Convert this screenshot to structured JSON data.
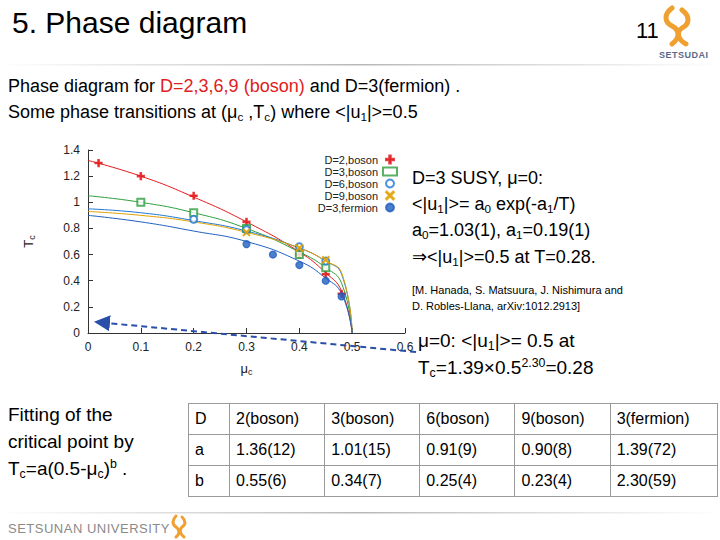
{
  "header": {
    "title": "5. Phase diagram",
    "page_number": "11",
    "logo_text": "SETSUDAI"
  },
  "intro": [
    [
      "Phase diagram for ",
      {
        "text": "D=2,3,6,9 (boson)",
        "color": "#e0201b"
      },
      " and D=3(fermion) ."
    ],
    [
      "Some phase transitions at (μ",
      {
        "sub": "c"
      },
      " ,T",
      {
        "sub": "c"
      },
      ") where <|u",
      {
        "sub": "1"
      },
      "|>=0.5"
    ]
  ],
  "notes": [
    [
      "D=3 SUSY, μ=0:"
    ],
    [
      "<|u",
      {
        "sub": "1"
      },
      "|>= a",
      {
        "sub": "0"
      },
      " exp(-a",
      {
        "sub": "1"
      },
      "/T)"
    ],
    [
      "a",
      {
        "sub": "0"
      },
      "=1.03(1), a",
      {
        "sub": "1"
      },
      "=0.19(1)"
    ],
    [
      "⇒<|u",
      {
        "sub": "1"
      },
      "|>=0.5 at T=0.28."
    ]
  ],
  "citation": [
    "[M. Hanada, S. Matsuura, J. Nishimura and",
    "D. Robles-Llana, arXiv:1012.2913]"
  ],
  "annotation": [
    [
      "μ=0: <|u",
      {
        "sub": "1"
      },
      "|>= 0.5 at"
    ],
    [
      "T",
      {
        "sub": "c"
      },
      "=1.39×0.5",
      {
        "sup": "2.30"
      },
      "=0.28"
    ]
  ],
  "fit_text": [
    [
      "Fitting of the"
    ],
    [
      "critical point  by"
    ],
    [
      "T",
      {
        "sub": "c"
      },
      "=a(0.5-μ",
      {
        "sub": "c"
      },
      ")",
      {
        "sup": "b"
      },
      " ."
    ]
  ],
  "table": {
    "rows": [
      [
        "D",
        "2(boson)",
        "3(boson)",
        "6(boson)",
        "9(boson)",
        "3(fermion)"
      ],
      [
        "a",
        "1.36(12)",
        "1.01(15)",
        "0.91(9)",
        "0.90(8)",
        "1.39(72)"
      ],
      [
        "b",
        "0.55(6)",
        "0.34(7)",
        "0.25(4)",
        "0.23(4)",
        "2.30(59)"
      ]
    ]
  },
  "footer": {
    "text": "SETSUNAN UNIVERSITY"
  },
  "chart_data": {
    "type": "scatter",
    "xlabel": [
      "μ",
      {
        "sub": "c"
      }
    ],
    "ylabel": [
      "T",
      {
        "sub": "c"
      }
    ],
    "xlim": [
      0,
      0.6
    ],
    "ylim": [
      0,
      1.4
    ],
    "xticks": [
      0,
      0.1,
      0.2,
      0.3,
      0.4,
      0.5,
      0.6
    ],
    "yticks": [
      0,
      0.2,
      0.4,
      0.6,
      0.8,
      1,
      1.2,
      1.4
    ],
    "grid": false,
    "legend": "upper right",
    "fit_x": [
      0,
      0.1,
      0.2,
      0.3,
      0.4,
      0.45,
      0.48,
      0.5
    ],
    "series": [
      {
        "name": "D=2,boson",
        "color": "#e41a1c",
        "marker": "plus",
        "line_style": "solid",
        "x": [
          0.02,
          0.1,
          0.2,
          0.3,
          0.4,
          0.45,
          0.48
        ],
        "values": [
          1.3,
          1.2,
          1.05,
          0.85,
          0.6,
          0.45,
          0.3
        ],
        "fit_values": [
          1.32,
          1.2,
          1.04,
          0.85,
          0.62,
          0.46,
          0.32,
          0
        ]
      },
      {
        "name": "D=3,boson",
        "color": "#2e9e3e",
        "marker": "square_open",
        "line_style": "solid",
        "x": [
          0.1,
          0.2,
          0.3,
          0.4,
          0.45
        ],
        "values": [
          1.0,
          0.92,
          0.8,
          0.6,
          0.5
        ],
        "fit_values": [
          1.05,
          1.0,
          0.92,
          0.8,
          0.62,
          0.5,
          0.38,
          0
        ]
      },
      {
        "name": "D=6,boson",
        "color": "#1f77d4",
        "marker": "circle_open",
        "line_style": "solid",
        "x": [
          0.2,
          0.3,
          0.4,
          0.45
        ],
        "values": [
          0.87,
          0.79,
          0.66,
          0.55
        ],
        "fit_values": [
          0.95,
          0.92,
          0.86,
          0.78,
          0.65,
          0.55,
          0.45,
          0
        ]
      },
      {
        "name": "D=9,boson",
        "color": "#e0a000",
        "marker": "x",
        "line_style": "solid",
        "x": [
          0.3,
          0.4,
          0.45
        ],
        "values": [
          0.77,
          0.65,
          0.56
        ],
        "fit_values": [
          0.93,
          0.9,
          0.85,
          0.77,
          0.65,
          0.55,
          0.46,
          0
        ]
      },
      {
        "name": "D=3,fermion",
        "color": "#1f5fbf",
        "marker": "circle",
        "line_style": "solid",
        "x": [
          0.3,
          0.35,
          0.4,
          0.45,
          0.48
        ],
        "values": [
          0.68,
          0.6,
          0.52,
          0.4,
          0.28
        ],
        "fit_values": [
          0.9,
          0.85,
          0.78,
          0.7,
          0.55,
          0.42,
          0.3,
          0
        ]
      }
    ]
  }
}
